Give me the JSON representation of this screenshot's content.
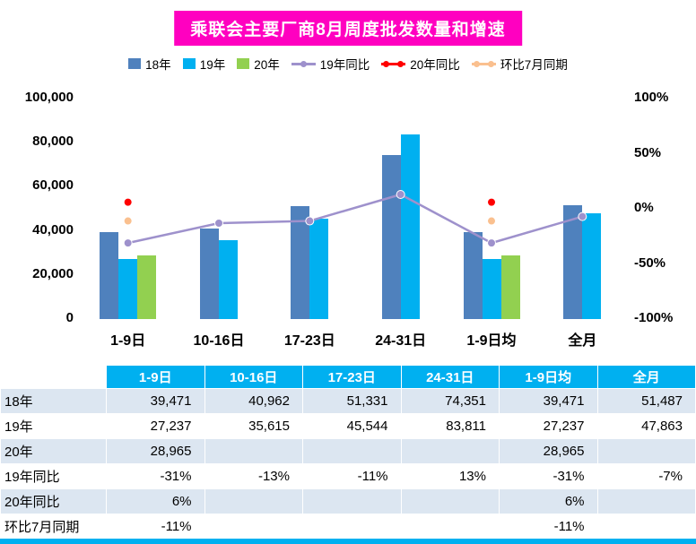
{
  "title": "乘联会主要厂商8月周度批发数量和增速",
  "colors": {
    "title_bg": "#FF00C0",
    "bar18": "#4F81BD",
    "bar19": "#00B0F0",
    "bar20": "#92D050",
    "line19yoy": "#9E91CC",
    "line20yoy": "#FF0000",
    "line_mom": "#FAC08F",
    "table_header_bg": "#00B0F0",
    "row_alt_bg": "#DCE6F1"
  },
  "chart_data": {
    "type": "bar+line",
    "categories": [
      "1-9日",
      "10-16日",
      "17-23日",
      "24-31日",
      "1-9日均",
      "全月"
    ],
    "bar_series": [
      {
        "name": "18年",
        "color_key": "bar18",
        "values": [
          39471,
          40962,
          51331,
          74351,
          39471,
          51487
        ]
      },
      {
        "name": "19年",
        "color_key": "bar19",
        "values": [
          27237,
          35615,
          45544,
          83811,
          27237,
          47863
        ]
      },
      {
        "name": "20年",
        "color_key": "bar20",
        "values": [
          28965,
          null,
          null,
          null,
          28965,
          null
        ]
      }
    ],
    "line_series": [
      {
        "name": "19年同比",
        "color_key": "line19yoy",
        "style": "line",
        "values_pct": [
          -31,
          -13,
          -11,
          13,
          -31,
          -7
        ]
      },
      {
        "name": "20年同比",
        "color_key": "line20yoy",
        "style": "points",
        "values_pct": [
          6,
          null,
          null,
          null,
          6,
          null
        ]
      },
      {
        "name": "环比7月同期",
        "color_key": "line_mom",
        "style": "points",
        "values_pct": [
          -11,
          null,
          null,
          null,
          -11,
          null
        ]
      }
    ],
    "left_axis": {
      "ticks": [
        "100,000",
        "80,000",
        "60,000",
        "40,000",
        "20,000",
        "0"
      ],
      "min": 0,
      "max": 100000
    },
    "right_axis": {
      "ticks": [
        "100%",
        "50%",
        "0%",
        "-50%",
        "-100%"
      ],
      "min": -100,
      "max": 100
    },
    "grid": "off",
    "legend_position": "top"
  },
  "table": {
    "headers": [
      "",
      "1-9日",
      "10-16日",
      "17-23日",
      "24-31日",
      "1-9日均",
      "全月"
    ],
    "rows": [
      {
        "label": "18年",
        "cells": [
          "39,471",
          "40,962",
          "51,331",
          "74,351",
          "39,471",
          "51,487"
        ]
      },
      {
        "label": "19年",
        "cells": [
          "27,237",
          "35,615",
          "45,544",
          "83,811",
          "27,237",
          "47,863"
        ]
      },
      {
        "label": "20年",
        "cells": [
          "28,965",
          "",
          "",
          "",
          "28,965",
          ""
        ]
      },
      {
        "label": "19年同比",
        "cells": [
          "-31%",
          "-13%",
          "-11%",
          "13%",
          "-31%",
          "-7%"
        ]
      },
      {
        "label": "20年同比",
        "cells": [
          "6%",
          "",
          "",
          "",
          "6%",
          ""
        ]
      },
      {
        "label": "环比7月同期",
        "cells": [
          "-11%",
          "",
          "",
          "",
          "-11%",
          ""
        ]
      }
    ]
  }
}
